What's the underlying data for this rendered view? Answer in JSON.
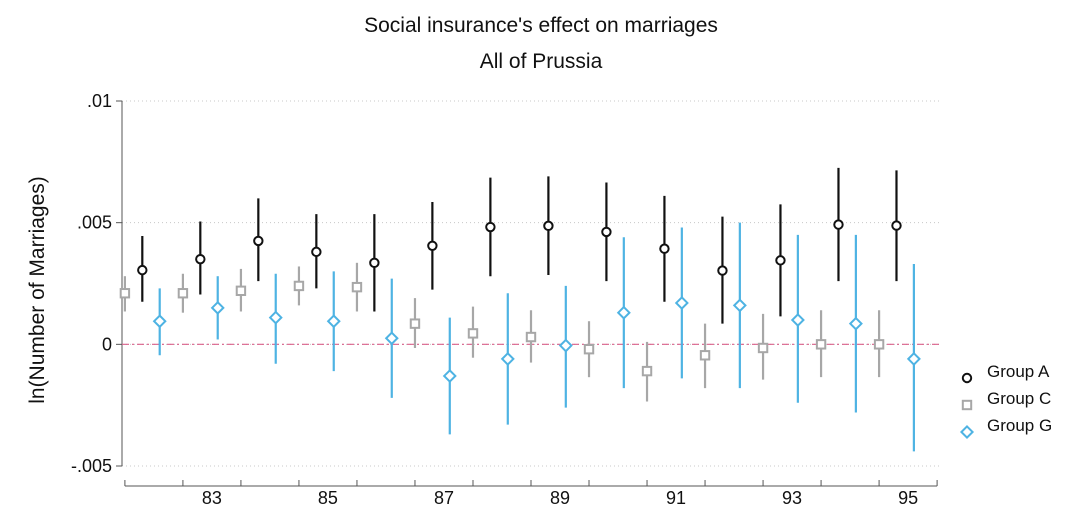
{
  "chart_data": {
    "type": "scatter",
    "title": "Social insurance's effect on marriages",
    "subtitle": "All of Prussia",
    "xlabel": "",
    "ylabel": "ln(Number of Marriages)",
    "ylim": [
      -0.005,
      0.01
    ],
    "xlim": [
      81.95,
      96.05
    ],
    "y_ticks": [
      {
        "value": 0.01,
        "label": ".01"
      },
      {
        "value": 0.005,
        "label": ".005"
      },
      {
        "value": 0,
        "label": "0"
      },
      {
        "value": -0.005,
        "label": "-.005"
      }
    ],
    "x_ticks": [
      {
        "value": 83,
        "label": "83"
      },
      {
        "value": 85,
        "label": "85"
      },
      {
        "value": 87,
        "label": "87"
      },
      {
        "value": 89,
        "label": "89"
      },
      {
        "value": 91,
        "label": "91"
      },
      {
        "value": 93,
        "label": "93"
      },
      {
        "value": 95,
        "label": "95"
      }
    ],
    "grid": true,
    "reference_line": {
      "y": 0,
      "color": "#d9608a",
      "style": "dash-dot"
    },
    "legend_position": "right",
    "series": [
      {
        "name": "Group A",
        "marker": "circle",
        "color": "#111111",
        "x": [
          82.3,
          83.3,
          84.3,
          85.3,
          86.3,
          87.3,
          88.3,
          89.3,
          90.3,
          91.3,
          92.3,
          93.3,
          94.3,
          95.3
        ],
        "y": [
          0.00305,
          0.0035,
          0.00425,
          0.0038,
          0.00335,
          0.00405,
          0.00482,
          0.00487,
          0.00462,
          0.00393,
          0.00303,
          0.00345,
          0.00492,
          0.00488
        ],
        "lo": [
          0.00175,
          0.00205,
          0.0026,
          0.0023,
          0.00135,
          0.00225,
          0.0028,
          0.00285,
          0.0026,
          0.00175,
          0.00085,
          0.00115,
          0.0026,
          0.0026
        ],
        "hi": [
          0.00445,
          0.00505,
          0.006,
          0.00535,
          0.00535,
          0.00585,
          0.00685,
          0.0069,
          0.00665,
          0.0061,
          0.00525,
          0.00575,
          0.00725,
          0.00715
        ]
      },
      {
        "name": "Group C",
        "marker": "square",
        "color": "#a7a7a7",
        "x": [
          82.0,
          83.0,
          84.0,
          85.0,
          86.0,
          87.0,
          88.0,
          89.0,
          90.0,
          91.0,
          92.0,
          93.0,
          94.0,
          95.0
        ],
        "y": [
          0.0021,
          0.0021,
          0.0022,
          0.0024,
          0.00235,
          0.00085,
          0.00045,
          0.0003,
          -0.0002,
          -0.0011,
          -0.00045,
          -0.00015,
          0.0,
          0.0
        ],
        "lo": [
          0.00135,
          0.0013,
          0.00135,
          0.0016,
          0.00135,
          -0.00015,
          -0.00055,
          -0.00075,
          -0.00135,
          -0.00235,
          -0.0018,
          -0.00145,
          -0.00135,
          -0.00135
        ],
        "hi": [
          0.0028,
          0.0029,
          0.0031,
          0.0032,
          0.00335,
          0.0019,
          0.00155,
          0.0014,
          0.00095,
          0.0001,
          0.00085,
          0.00125,
          0.0014,
          0.0014
        ]
      },
      {
        "name": "Group G",
        "marker": "diamond",
        "color": "#4eb3e3",
        "x": [
          82.6,
          83.6,
          84.6,
          85.6,
          86.6,
          87.6,
          88.6,
          89.6,
          90.6,
          91.6,
          92.6,
          93.6,
          94.6,
          95.6
        ],
        "y": [
          0.00095,
          0.0015,
          0.0011,
          0.00095,
          0.00025,
          -0.0013,
          -0.0006,
          -5e-05,
          0.0013,
          0.0017,
          0.0016,
          0.001,
          0.00085,
          -0.0006
        ],
        "lo": [
          -0.00045,
          0.0002,
          -0.0008,
          -0.0011,
          -0.0022,
          -0.0037,
          -0.0033,
          -0.0026,
          -0.0018,
          -0.0014,
          -0.0018,
          -0.0024,
          -0.0028,
          -0.0044
        ],
        "hi": [
          0.0023,
          0.0028,
          0.0029,
          0.003,
          0.0027,
          0.0011,
          0.0021,
          0.0024,
          0.0044,
          0.0048,
          0.005,
          0.0045,
          0.0045,
          0.0033
        ]
      }
    ]
  }
}
